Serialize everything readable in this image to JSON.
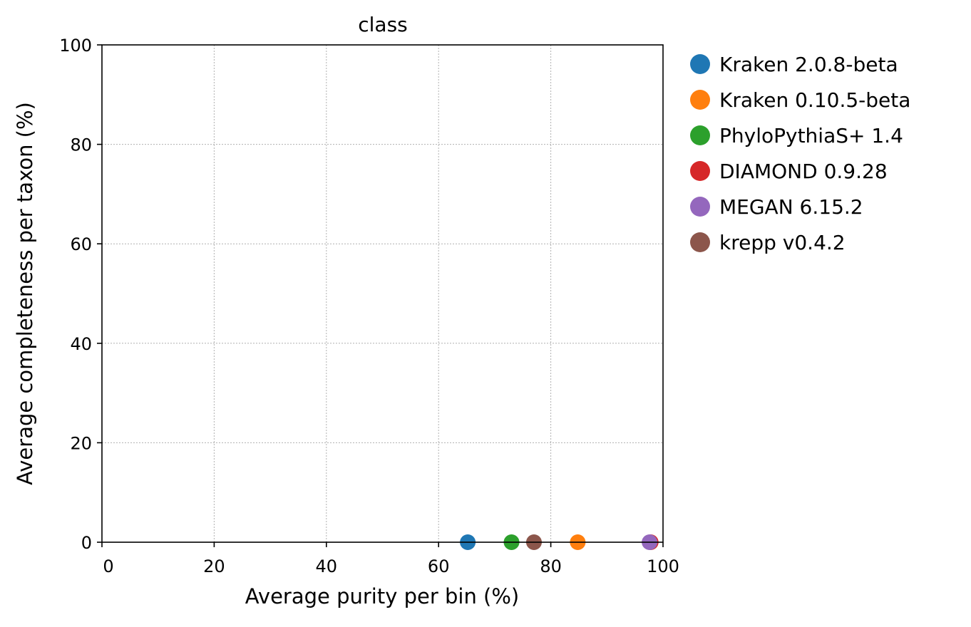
{
  "chart_data": {
    "type": "scatter",
    "title": "class",
    "xlabel": "Average purity per bin (%)",
    "ylabel": "Average completeness per taxon (%)",
    "xlim": [
      0,
      100
    ],
    "ylim": [
      0,
      100
    ],
    "xticks": [
      0,
      20,
      40,
      60,
      80,
      100
    ],
    "yticks": [
      0,
      20,
      40,
      60,
      80,
      100
    ],
    "grid": true,
    "legend_position": "outside-right",
    "series": [
      {
        "name": "Kraken 2.0.8-beta",
        "color": "#1f77b4",
        "x": 65.2,
        "y": 0.0
      },
      {
        "name": "Kraken 0.10.5-beta",
        "color": "#ff7f0e",
        "x": 84.8,
        "y": 0.0
      },
      {
        "name": "PhyloPythiaS+ 1.4",
        "color": "#2ca02c",
        "x": 73.0,
        "y": 0.0
      },
      {
        "name": "DIAMOND 0.9.28",
        "color": "#d62728",
        "x": 97.8,
        "y": 0.0
      },
      {
        "name": "MEGAN 6.15.2",
        "color": "#9467bd",
        "x": 97.6,
        "y": 0.0
      },
      {
        "name": "krepp v0.4.2",
        "color": "#8c564b",
        "x": 77.0,
        "y": 0.0
      }
    ]
  }
}
